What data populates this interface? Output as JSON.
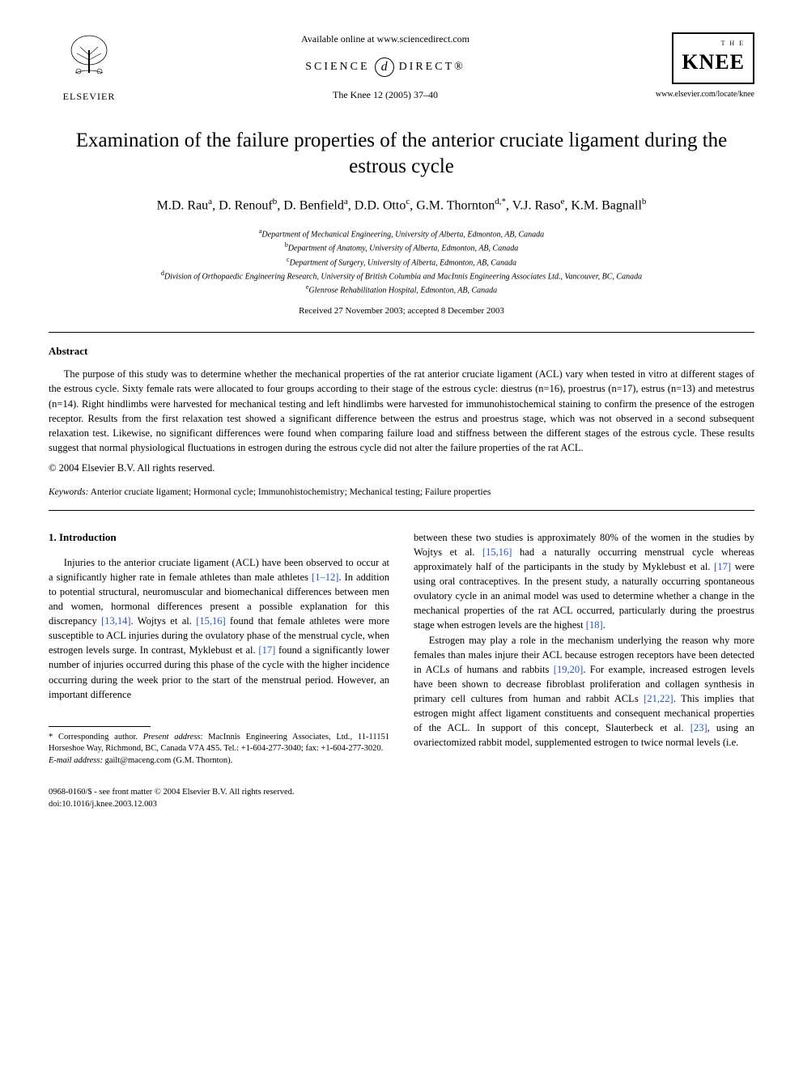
{
  "header": {
    "publisher_name": "ELSEVIER",
    "available_online": "Available online at www.sciencedirect.com",
    "science_direct_left": "SCIENCE",
    "science_direct_symbol": "d",
    "science_direct_right": "DIRECT®",
    "journal_ref": "The Knee 12 (2005) 37–40",
    "journal_box_the": "T H E",
    "journal_box_name": "KNEE",
    "journal_url": "www.elsevier.com/locate/knee"
  },
  "title": "Examination of the failure properties of the anterior cruciate ligament during the estrous cycle",
  "authors_html": "M.D. Rau<sup>a</sup>, D. Renouf<sup>b</sup>, D. Benfield<sup>a</sup>, D.D. Otto<sup>c</sup>, G.M. Thornton<sup>d,*</sup>, V.J. Raso<sup>e</sup>, K.M. Bagnall<sup>b</sup>",
  "affiliations": [
    {
      "sup": "a",
      "text": "Department of Mechanical Engineering, University of Alberta, Edmonton, AB, Canada"
    },
    {
      "sup": "b",
      "text": "Department of Anatomy, University of Alberta, Edmonton, AB, Canada"
    },
    {
      "sup": "c",
      "text": "Department of Surgery, University of Alberta, Edmonton, AB, Canada"
    },
    {
      "sup": "d",
      "text": "Division of Orthopaedic Engineering Research, University of British Columbia and MacInnis Engineering Associates Ltd., Vancouver, BC, Canada"
    },
    {
      "sup": "e",
      "text": "Glenrose Rehabilitation Hospital, Edmonton, AB, Canada"
    }
  ],
  "dates": "Received 27 November 2003; accepted 8 December 2003",
  "abstract": {
    "heading": "Abstract",
    "text": "The purpose of this study was to determine whether the mechanical properties of the rat anterior cruciate ligament (ACL) vary when tested in vitro at different stages of the estrous cycle. Sixty female rats were allocated to four groups according to their stage of the estrous cycle: diestrus (n=16), proestrus (n=17), estrus (n=13) and metestrus (n=14). Right hindlimbs were harvested for mechanical testing and left hindlimbs were harvested for immunohistochemical staining to confirm the presence of the estrogen receptor. Results from the first relaxation test showed a significant difference between the estrus and proestrus stage, which was not observed in a second subsequent relaxation test. Likewise, no significant differences were found when comparing failure load and stiffness between the different stages of the estrous cycle. These results suggest that normal physiological fluctuations in estrogen during the estrous cycle did not alter the failure properties of the rat ACL.",
    "copyright": "© 2004 Elsevier B.V. All rights reserved."
  },
  "keywords": {
    "label": "Keywords:",
    "text": " Anterior cruciate ligament; Hormonal cycle; Immunohistochemistry; Mechanical testing; Failure properties"
  },
  "section1": {
    "heading": "1. Introduction",
    "col1_p1_a": "Injuries to the anterior cruciate ligament (ACL) have been observed to occur at a significantly higher rate in female athletes than male athletes ",
    "ref1": "[1–12]",
    "col1_p1_b": ". In addition to potential structural, neuromuscular and biomechanical differences between men and women, hormonal differences present a possible explanation for this discrepancy ",
    "ref2": "[13,14]",
    "col1_p1_c": ". Wojtys et al. ",
    "ref3": "[15,16]",
    "col1_p1_d": " found that female athletes were more susceptible to ACL injuries during the ovulatory phase of the menstrual cycle, when estrogen levels surge. In contrast, Myklebust et al. ",
    "ref4": "[17]",
    "col1_p1_e": " found a significantly lower number of injuries occurred during this phase of the cycle with the higher incidence occurring during the week prior to the start of the menstrual period. However, an important difference",
    "col2_p1_a": "between these two studies is approximately 80% of the women in the studies by Wojtys et al. ",
    "ref5": "[15,16]",
    "col2_p1_b": " had a naturally occurring menstrual cycle whereas approximately half of the participants in the study by Myklebust et al. ",
    "ref6": "[17]",
    "col2_p1_c": " were using oral contraceptives. In the present study, a naturally occurring spontaneous ovulatory cycle in an animal model was used to determine whether a change in the mechanical properties of the rat ACL occurred, particularly during the proestrus stage when estrogen levels are the highest ",
    "ref7": "[18]",
    "col2_p1_d": ".",
    "col2_p2_a": "Estrogen may play a role in the mechanism underlying the reason why more females than males injure their ACL because estrogen receptors have been detected in ACLs of humans and rabbits ",
    "ref8": "[19,20]",
    "col2_p2_b": ". For example, increased estrogen levels have been shown to decrease fibroblast proliferation and collagen synthesis in primary cell cultures from human and rabbit ACLs ",
    "ref9": "[21,22]",
    "col2_p2_c": ". This implies that estrogen might affect ligament constituents and consequent mechanical properties of the ACL. In support of this concept, Slauterbeck et al. ",
    "ref10": "[23]",
    "col2_p2_d": ", using an ovariectomized rabbit model, supplemented estrogen to twice normal levels (i.e."
  },
  "footnote": {
    "corr_label": "* Corresponding author. ",
    "present_label": "Present address",
    "corr_text": ": MacInnis Engineering Associates, Ltd., 11-11151 Horseshoe Way, Richmond, BC, Canada V7A 4S5. Tel.: +1-604-277-3040; fax: +1-604-277-3020.",
    "email_label": "E-mail address:",
    "email_value": " gailt@maceng.com (G.M. Thornton)."
  },
  "footer": {
    "line1": "0968-0160/$ - see front matter © 2004 Elsevier B.V. All rights reserved.",
    "line2": "doi:10.1016/j.knee.2003.12.003"
  },
  "colors": {
    "text": "#000000",
    "background": "#ffffff",
    "link": "#2255cc"
  }
}
